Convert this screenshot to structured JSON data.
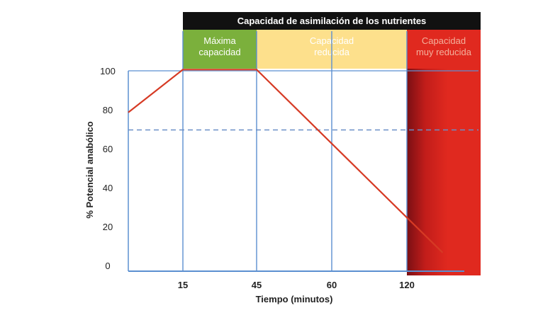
{
  "chart_data": {
    "type": "line",
    "title": "Capacidad de asimilación de los nutrientes",
    "xlabel": "Tiempo (minutos)",
    "ylabel": "% Potencial anabólico",
    "x_ticks": [
      "15",
      "45",
      "60",
      "120"
    ],
    "y_ticks": [
      "0",
      "20",
      "40",
      "60",
      "80",
      "100"
    ],
    "ylim": [
      0,
      100
    ],
    "zones": [
      {
        "label_lines": [
          "Máxima",
          "capacidad"
        ],
        "color": "#7bb03c",
        "text_color": "#ffffff"
      },
      {
        "label_lines": [
          "Capacidad",
          "reducida"
        ],
        "color": "#fde08c",
        "text_color": "#ffffff"
      },
      {
        "label_lines": [
          "Capacidad",
          "muy reducida"
        ],
        "color": "#e0291f",
        "text_color": "#f3b09c"
      }
    ],
    "series": [
      {
        "color": "#d63a24",
        "points": [
          {
            "x": 0,
            "y": 79
          },
          {
            "x": 15,
            "y": 101
          },
          {
            "x": 45,
            "y": 101
          },
          {
            "x": 120,
            "y": 25
          },
          {
            "x": 135,
            "y": 7
          }
        ]
      }
    ],
    "reference_line": {
      "y": 70,
      "style": "dashed",
      "color": "#6b8fc8"
    },
    "grid": false,
    "axis_color": "#5b8fd0"
  }
}
